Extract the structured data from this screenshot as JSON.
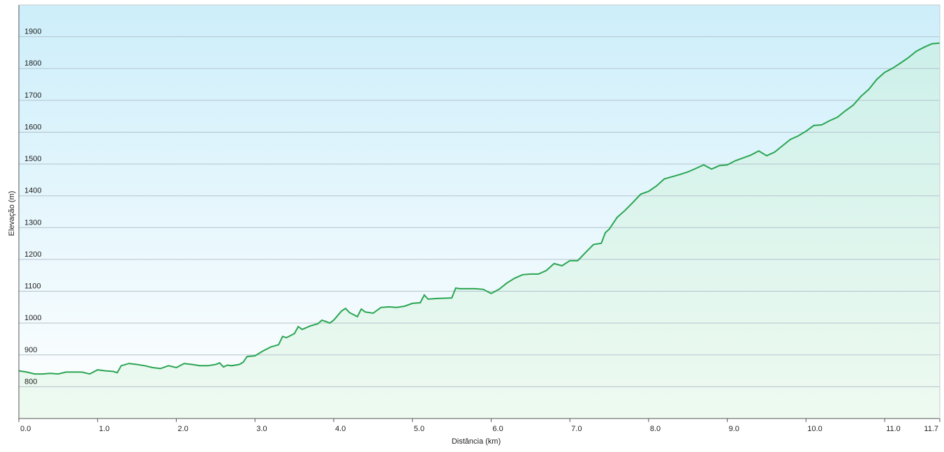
{
  "chart_data": {
    "type": "area",
    "x_label": "Distância  (km)",
    "y_label": "Elevação (m)",
    "color": "#2aa552",
    "x": [
      0,
      0.1,
      0.2,
      0.3,
      0.4,
      0.5,
      0.6,
      0.7,
      0.8,
      0.9,
      1.0,
      1.1,
      1.2,
      1.25,
      1.3,
      1.4,
      1.5,
      1.6,
      1.7,
      1.8,
      1.9,
      2.0,
      2.1,
      2.2,
      2.3,
      2.4,
      2.5,
      2.55,
      2.6,
      2.65,
      2.7,
      2.8,
      2.85,
      2.9,
      3.0,
      3.1,
      3.2,
      3.3,
      3.35,
      3.4,
      3.5,
      3.55,
      3.6,
      3.7,
      3.8,
      3.85,
      3.9,
      3.95,
      4.0,
      4.1,
      4.15,
      4.2,
      4.3,
      4.35,
      4.4,
      4.5,
      4.6,
      4.7,
      4.8,
      4.9,
      5.0,
      5.1,
      5.15,
      5.2,
      5.3,
      5.5,
      5.55,
      5.6,
      5.7,
      5.8,
      5.9,
      6.0,
      6.1,
      6.2,
      6.3,
      6.4,
      6.5,
      6.6,
      6.7,
      6.8,
      6.9,
      7.0,
      7.1,
      7.2,
      7.3,
      7.4,
      7.45,
      7.5,
      7.6,
      7.7,
      7.8,
      7.9,
      8.0,
      8.1,
      8.2,
      8.3,
      8.4,
      8.5,
      8.6,
      8.7,
      8.8,
      8.9,
      9.0,
      9.1,
      9.2,
      9.3,
      9.4,
      9.5,
      9.6,
      9.7,
      9.8,
      9.9,
      10.0,
      10.1,
      10.2,
      10.3,
      10.4,
      10.5,
      10.6,
      10.7,
      10.8,
      10.9,
      11.0,
      11.1,
      11.2,
      11.3,
      11.4,
      11.5,
      11.6,
      11.7
    ],
    "values": [
      850,
      846,
      840,
      840,
      842,
      840,
      846,
      846,
      846,
      840,
      853,
      850,
      848,
      844,
      866,
      873,
      870,
      866,
      860,
      857,
      866,
      860,
      873,
      870,
      866,
      866,
      870,
      875,
      862,
      868,
      866,
      870,
      877,
      895,
      897,
      912,
      925,
      932,
      958,
      954,
      967,
      989,
      980,
      991,
      998,
      1009,
      1005,
      1000,
      1009,
      1038,
      1046,
      1033,
      1020,
      1044,
      1035,
      1031,
      1049,
      1051,
      1049,
      1053,
      1062,
      1064,
      1088,
      1075,
      1077,
      1079,
      1110,
      1108,
      1108,
      1108,
      1106,
      1093,
      1106,
      1126,
      1141,
      1152,
      1154,
      1154,
      1165,
      1187,
      1180,
      1196,
      1196,
      1222,
      1247,
      1251,
      1284,
      1295,
      1332,
      1354,
      1379,
      1405,
      1414,
      1431,
      1453,
      1460,
      1467,
      1475,
      1486,
      1497,
      1484,
      1495,
      1497,
      1510,
      1519,
      1528,
      1541,
      1526,
      1537,
      1557,
      1577,
      1588,
      1603,
      1621,
      1623,
      1636,
      1647,
      1667,
      1685,
      1713,
      1735,
      1766,
      1788,
      1801,
      1817,
      1834,
      1854,
      1867,
      1878,
      1880
    ],
    "xlim": [
      0,
      11.7
    ],
    "xticks": [
      {
        "value": 0,
        "label": "0.0"
      },
      {
        "value": 1,
        "label": "1.0"
      },
      {
        "value": 2,
        "label": "2.0"
      },
      {
        "value": 3,
        "label": "3.0"
      },
      {
        "value": 4,
        "label": "4.0"
      },
      {
        "value": 5,
        "label": "5.0"
      },
      {
        "value": 6,
        "label": "6.0"
      },
      {
        "value": 7,
        "label": "7.0"
      },
      {
        "value": 8,
        "label": "8.0"
      },
      {
        "value": 9,
        "label": "9.0"
      },
      {
        "value": 10,
        "label": "10.0"
      },
      {
        "value": 11,
        "label": "11.0"
      },
      11.7
    ],
    "ylim": [
      700,
      2000
    ],
    "yticks": [
      800,
      900,
      1000,
      1100,
      1200,
      1300,
      1400,
      1500,
      1600,
      1700,
      1800,
      1900
    ],
    "grid": true
  }
}
